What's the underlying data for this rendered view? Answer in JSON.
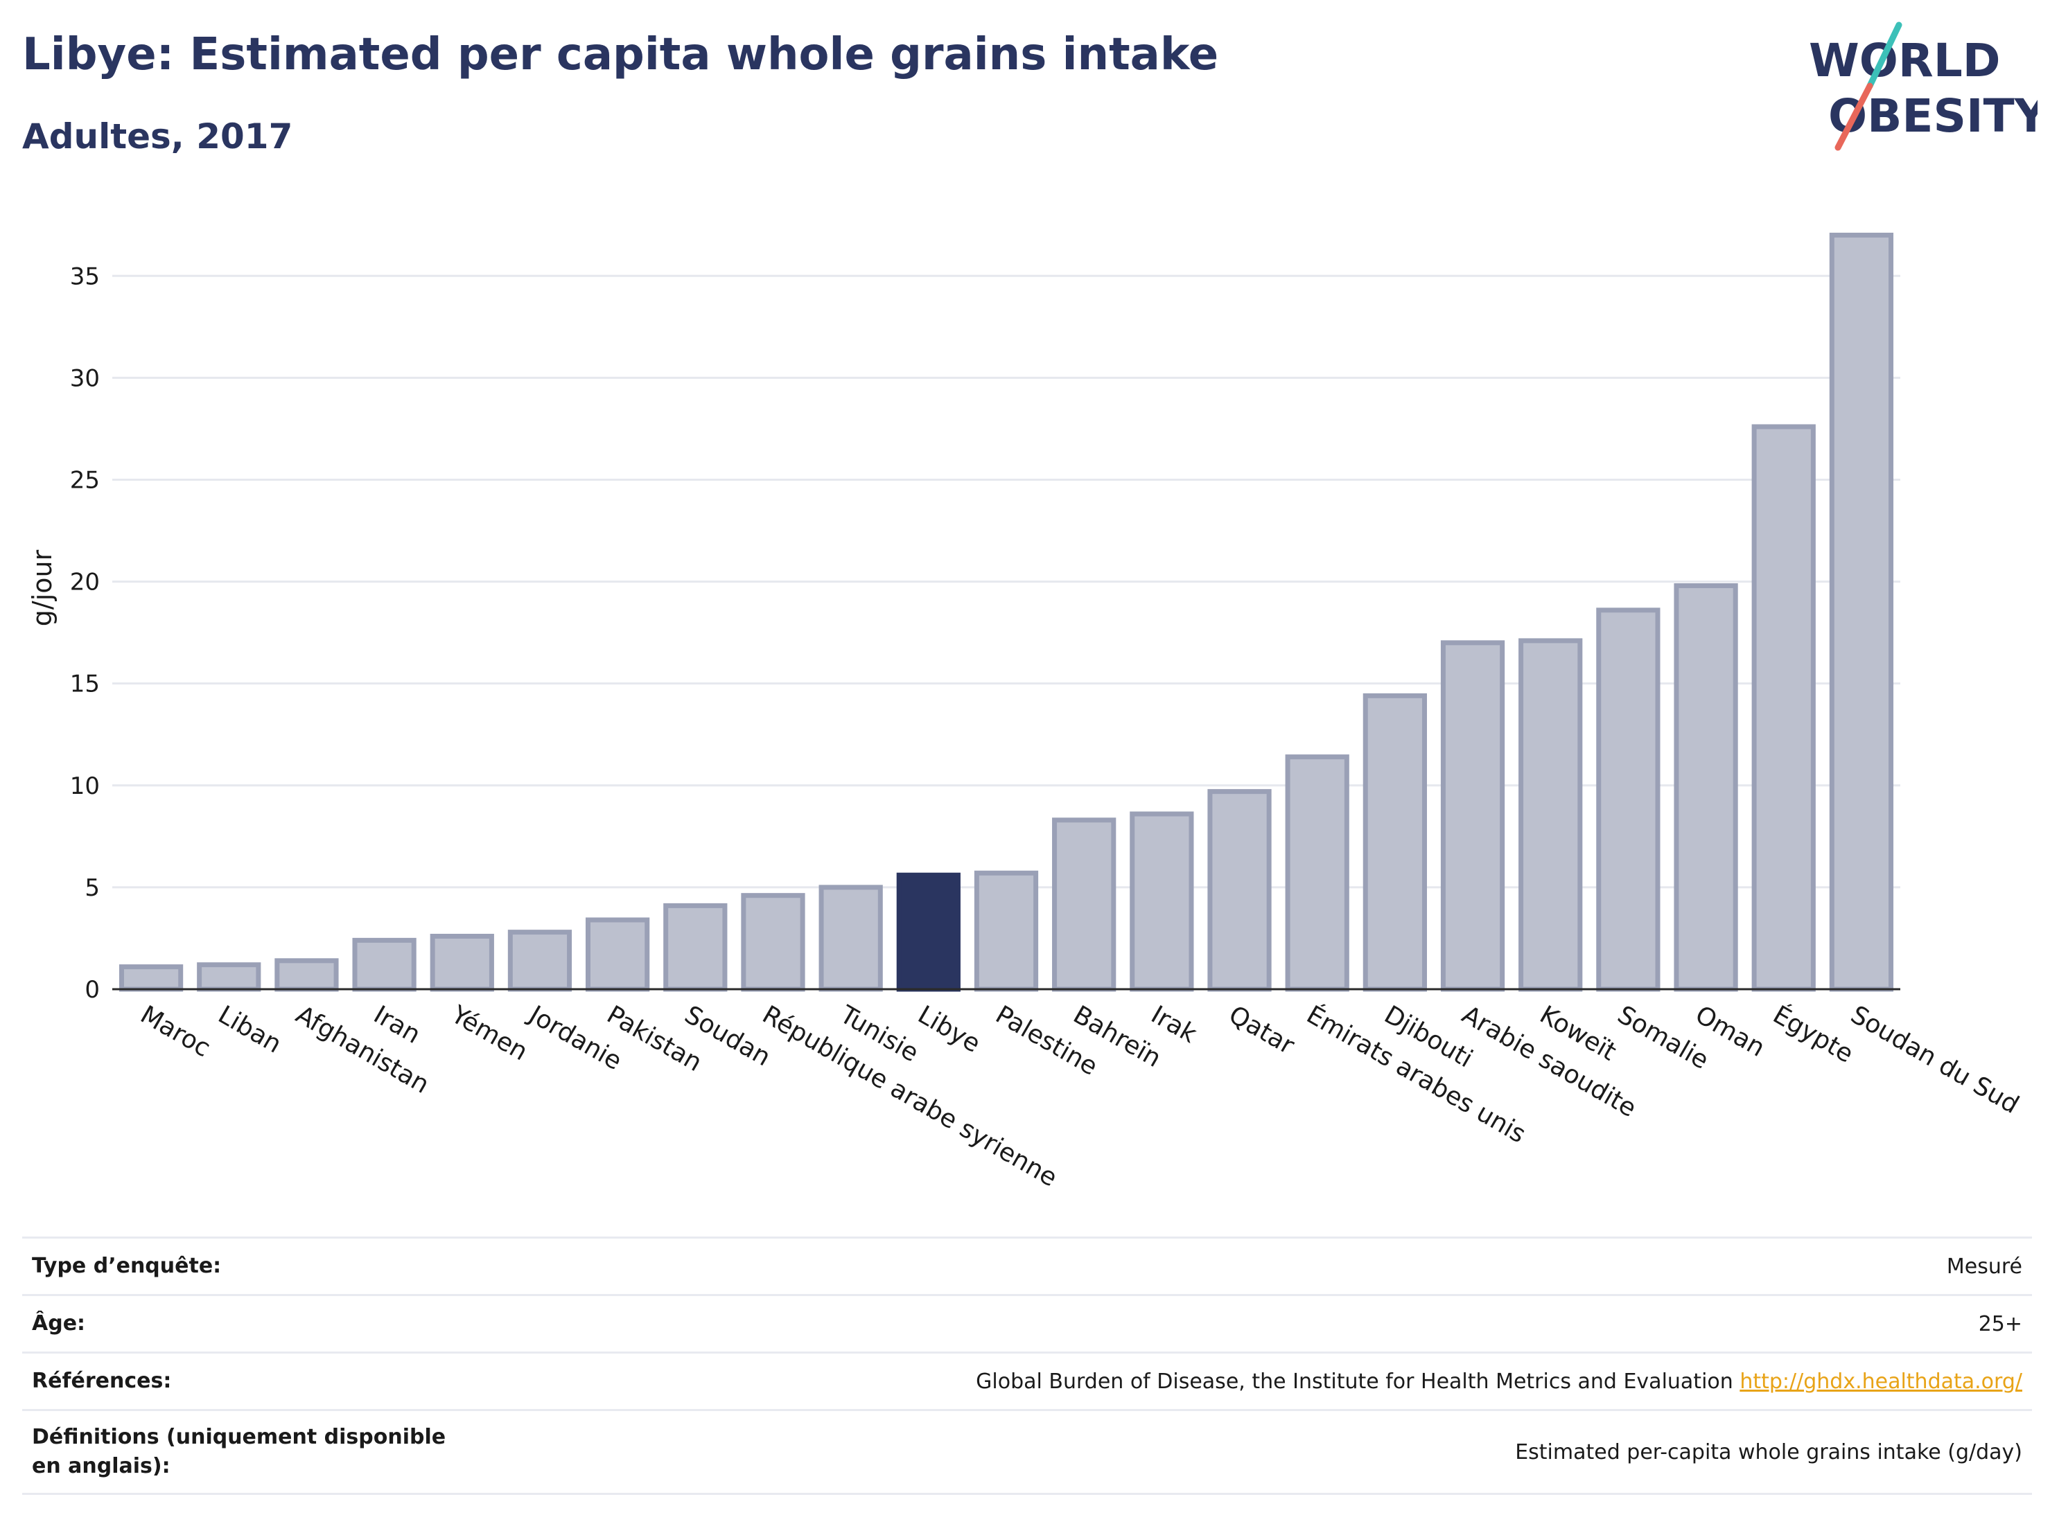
{
  "header": {
    "title": "Libye: Estimated per capita whole grains intake",
    "subtitle": "Adultes, 2017"
  },
  "logo": {
    "text_line1": "WORLD",
    "text_line2": "OBESITY",
    "color_text": "#2a3560",
    "color_slash_top": "#3cc0b8",
    "color_slash_bottom": "#e8675a"
  },
  "colors": {
    "bar_default": "#bcc0ce",
    "bar_default_stroke": "#9aa0b6",
    "bar_highlight": "#2a3560",
    "axis_text": "#1a1a1a",
    "grid": "#e6e8ee",
    "baseline": "#2a2a2a"
  },
  "chart_data": {
    "type": "bar",
    "ylabel": "g/jour",
    "xlabel": "",
    "ylim": [
      0,
      38
    ],
    "yticks": [
      0,
      5,
      10,
      15,
      20,
      25,
      30,
      35
    ],
    "grid": true,
    "highlight": "Libye",
    "categories": [
      "Maroc",
      "Liban",
      "Afghanistan",
      "Iran",
      "Yémen",
      "Jordanie",
      "Pakistan",
      "Soudan",
      "République arabe syrienne",
      "Tunisie",
      "Libye",
      "Palestine",
      "Bahreïn",
      "Irak",
      "Qatar",
      "Émirats arabes unis",
      "Djibouti",
      "Arabie saoudite",
      "Koweït",
      "Somalie",
      "Oman",
      "Égypte",
      "Soudan du Sud"
    ],
    "values": [
      1.1,
      1.2,
      1.4,
      2.4,
      2.6,
      2.8,
      3.4,
      4.1,
      4.6,
      5.0,
      5.6,
      5.7,
      8.3,
      8.6,
      9.7,
      11.4,
      14.4,
      17.0,
      17.1,
      18.6,
      19.8,
      27.6,
      37.0
    ]
  },
  "info": {
    "survey_type_label": "Type d’enquête:",
    "survey_type_value": "Mesuré",
    "age_label": "Âge:",
    "age_value": "25+",
    "references_label": "Références:",
    "references_value": "Global Burden of Disease, the Institute for Health Metrics and Evaluation ",
    "references_link": "http://ghdx.healthdata.org/",
    "definitions_label": "Définitions (uniquement disponible en anglais):",
    "definitions_value": "Estimated per-capita whole grains intake (g/day)"
  }
}
